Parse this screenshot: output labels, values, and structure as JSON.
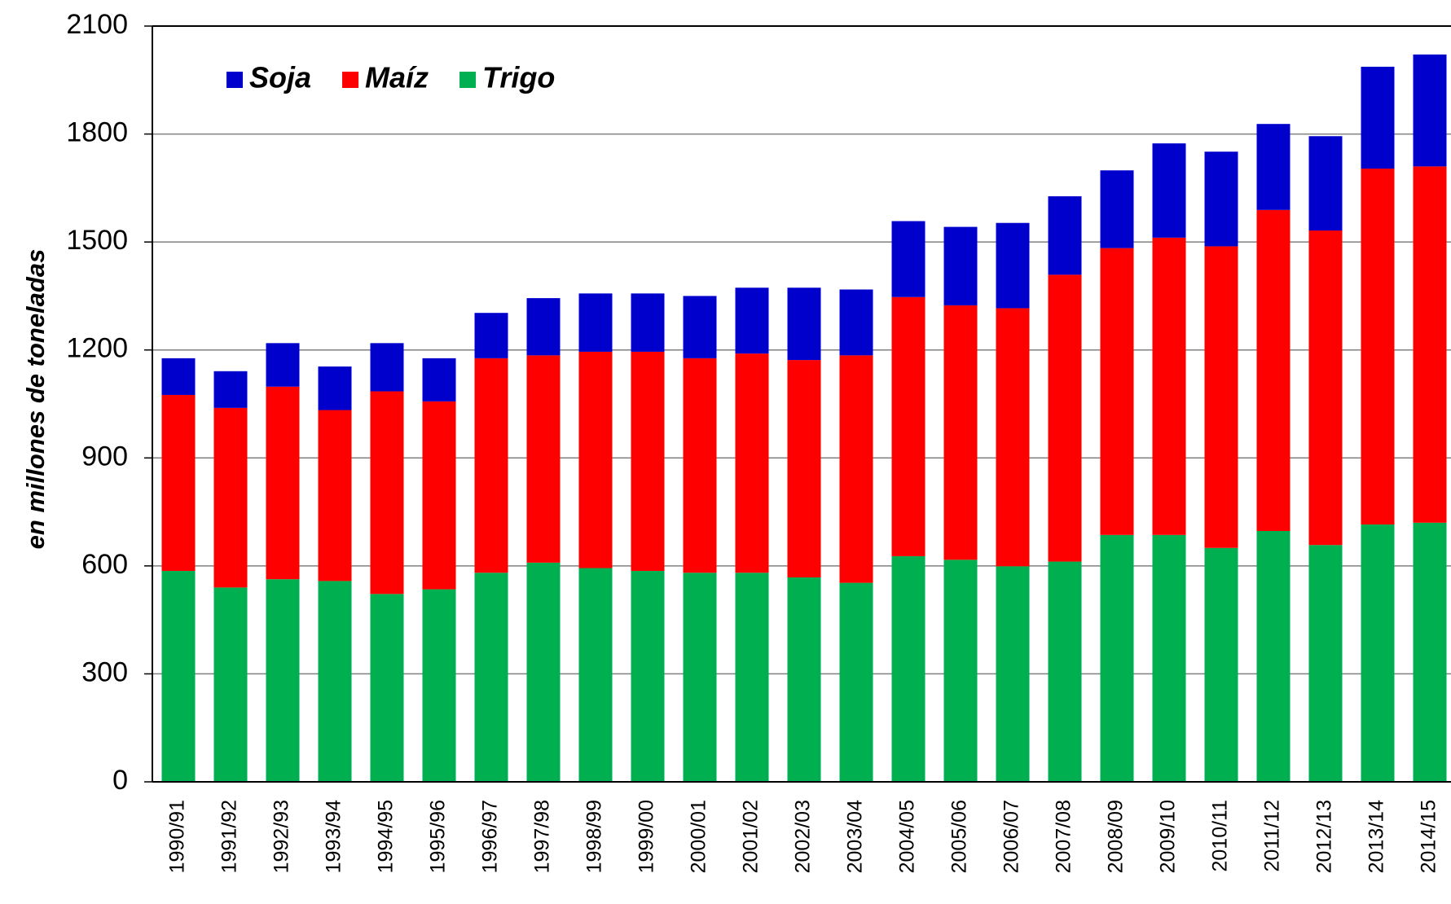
{
  "chart_data": {
    "type": "stacked_bar",
    "y_label": "en millones de toneladas",
    "categories": [
      "1990/91",
      "1991/92",
      "1992/93",
      "1993/94",
      "1994/95",
      "1995/96",
      "1996/97",
      "1997/98",
      "1998/99",
      "1999/00",
      "2000/01",
      "2001/02",
      "2002/03",
      "2003/04",
      "2004/05",
      "2005/06",
      "2006/07",
      "2007/08",
      "2008/09",
      "2009/10",
      "2010/11",
      "2011/12",
      "2012/13",
      "2013/14",
      "2014/15"
    ],
    "series": [
      {
        "name": "Soja",
        "color": "#0000cc",
        "values": [
          102,
          102,
          121,
          121,
          134,
          120,
          126,
          159,
          162,
          162,
          173,
          183,
          201,
          183,
          211,
          218,
          237,
          218,
          216,
          262,
          263,
          239,
          262,
          283,
          311
        ]
      },
      {
        "name": "Maíz",
        "color": "#ff0000",
        "values": [
          489,
          499,
          535,
          475,
          563,
          522,
          596,
          576,
          601,
          609,
          596,
          609,
          604,
          632,
          720,
          707,
          717,
          797,
          797,
          826,
          838,
          892,
          874,
          989,
          990
        ]
      },
      {
        "name": "Trigo",
        "color": "#00b050",
        "values": [
          586,
          540,
          563,
          558,
          522,
          535,
          581,
          609,
          594,
          586,
          581,
          581,
          568,
          553,
          627,
          617,
          599,
          612,
          686,
          686,
          650,
          697,
          658,
          715,
          720
        ]
      }
    ],
    "ylim": [
      0,
      2100
    ],
    "yticks": [
      0,
      300,
      600,
      900,
      1200,
      1500,
      1800,
      2100
    ],
    "grid": true,
    "legend": "upper left"
  }
}
